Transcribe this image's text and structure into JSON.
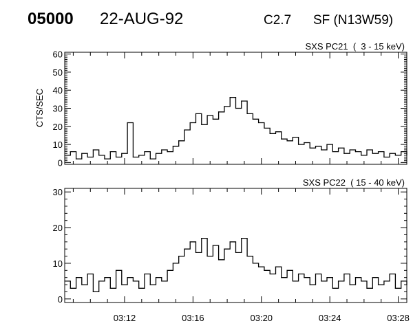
{
  "header": {
    "observation_id": "05000",
    "date": "22-AUG-92",
    "flare_class": "C2.7",
    "location": "SF (N13W59)"
  },
  "chart_data": [
    {
      "type": "line",
      "title": "SXS PC21  (  3 - 15 keV)",
      "ylabel": "CTS/SEC",
      "xlabel": "",
      "xlim": [
        "03:08:30",
        "03:28:30"
      ],
      "ylim": [
        -1,
        61
      ],
      "yticks": [
        0,
        10,
        20,
        30,
        40,
        50,
        60
      ],
      "xticks": [
        "03:12",
        "03:16",
        "03:20",
        "03:24",
        "03:28"
      ],
      "show_xtick_labels": false,
      "grid": false,
      "color": "#000000",
      "x": [
        "03:08:30",
        "03:08:50",
        "03:09:10",
        "03:09:30",
        "03:09:50",
        "03:10:10",
        "03:10:30",
        "03:10:50",
        "03:11:10",
        "03:11:30",
        "03:11:50",
        "03:12:10",
        "03:12:30",
        "03:12:50",
        "03:13:10",
        "03:13:30",
        "03:13:50",
        "03:14:10",
        "03:14:30",
        "03:14:50",
        "03:15:10",
        "03:15:30",
        "03:15:50",
        "03:16:10",
        "03:16:30",
        "03:16:50",
        "03:17:10",
        "03:17:30",
        "03:17:50",
        "03:18:10",
        "03:18:30",
        "03:18:50",
        "03:19:10",
        "03:19:30",
        "03:19:50",
        "03:20:10",
        "03:20:30",
        "03:20:50",
        "03:21:10",
        "03:21:30",
        "03:21:50",
        "03:22:10",
        "03:22:30",
        "03:22:50",
        "03:23:10",
        "03:23:30",
        "03:23:50",
        "03:24:10",
        "03:24:30",
        "03:24:50",
        "03:25:10",
        "03:25:30",
        "03:25:50",
        "03:26:10",
        "03:26:30",
        "03:26:50",
        "03:27:10",
        "03:27:30",
        "03:27:50",
        "03:28:10",
        "03:28:30"
      ],
      "values": [
        4,
        6,
        2,
        5,
        3,
        7,
        4,
        2,
        6,
        3,
        5,
        22,
        3,
        4,
        6,
        2,
        5,
        7,
        6,
        9,
        12,
        18,
        22,
        27,
        21,
        26,
        24,
        28,
        31,
        36,
        30,
        34,
        27,
        24,
        22,
        19,
        16,
        17,
        13,
        12,
        14,
        10,
        11,
        8,
        9,
        7,
        10,
        6,
        8,
        5,
        7,
        6,
        4,
        7,
        5,
        6,
        3,
        5,
        4,
        6,
        4
      ]
    },
    {
      "type": "line",
      "title": "SXS PC22  ( 15 - 40 keV)",
      "ylabel": "",
      "xlabel": "",
      "xlim": [
        "03:08:30",
        "03:28:30"
      ],
      "ylim": [
        -1,
        31
      ],
      "yticks": [
        0,
        10,
        20,
        30
      ],
      "xticks": [
        "03:12",
        "03:16",
        "03:20",
        "03:24",
        "03:28"
      ],
      "show_xtick_labels": true,
      "grid": false,
      "color": "#000000",
      "x": [
        "03:08:30",
        "03:08:50",
        "03:09:10",
        "03:09:30",
        "03:09:50",
        "03:10:10",
        "03:10:30",
        "03:10:50",
        "03:11:10",
        "03:11:30",
        "03:11:50",
        "03:12:10",
        "03:12:30",
        "03:12:50",
        "03:13:10",
        "03:13:30",
        "03:13:50",
        "03:14:10",
        "03:14:30",
        "03:14:50",
        "03:15:10",
        "03:15:30",
        "03:15:50",
        "03:16:10",
        "03:16:30",
        "03:16:50",
        "03:17:10",
        "03:17:30",
        "03:17:50",
        "03:18:10",
        "03:18:30",
        "03:18:50",
        "03:19:10",
        "03:19:30",
        "03:19:50",
        "03:20:10",
        "03:20:30",
        "03:20:50",
        "03:21:10",
        "03:21:30",
        "03:21:50",
        "03:22:10",
        "03:22:30",
        "03:22:50",
        "03:23:10",
        "03:23:30",
        "03:23:50",
        "03:24:10",
        "03:24:30",
        "03:24:50",
        "03:25:10",
        "03:25:30",
        "03:25:50",
        "03:26:10",
        "03:26:30",
        "03:26:50",
        "03:27:10",
        "03:27:30",
        "03:27:50",
        "03:28:10",
        "03:28:30"
      ],
      "values": [
        5,
        3,
        6,
        4,
        7,
        2,
        5,
        6,
        3,
        8,
        4,
        6,
        5,
        3,
        7,
        4,
        6,
        5,
        8,
        10,
        12,
        14,
        16,
        13,
        17,
        12,
        15,
        11,
        14,
        16,
        13,
        17,
        12,
        10,
        9,
        8,
        7,
        9,
        6,
        8,
        5,
        7,
        6,
        4,
        7,
        5,
        6,
        3,
        5,
        7,
        4,
        6,
        5,
        3,
        6,
        4,
        5,
        7,
        3,
        5,
        4
      ]
    }
  ]
}
